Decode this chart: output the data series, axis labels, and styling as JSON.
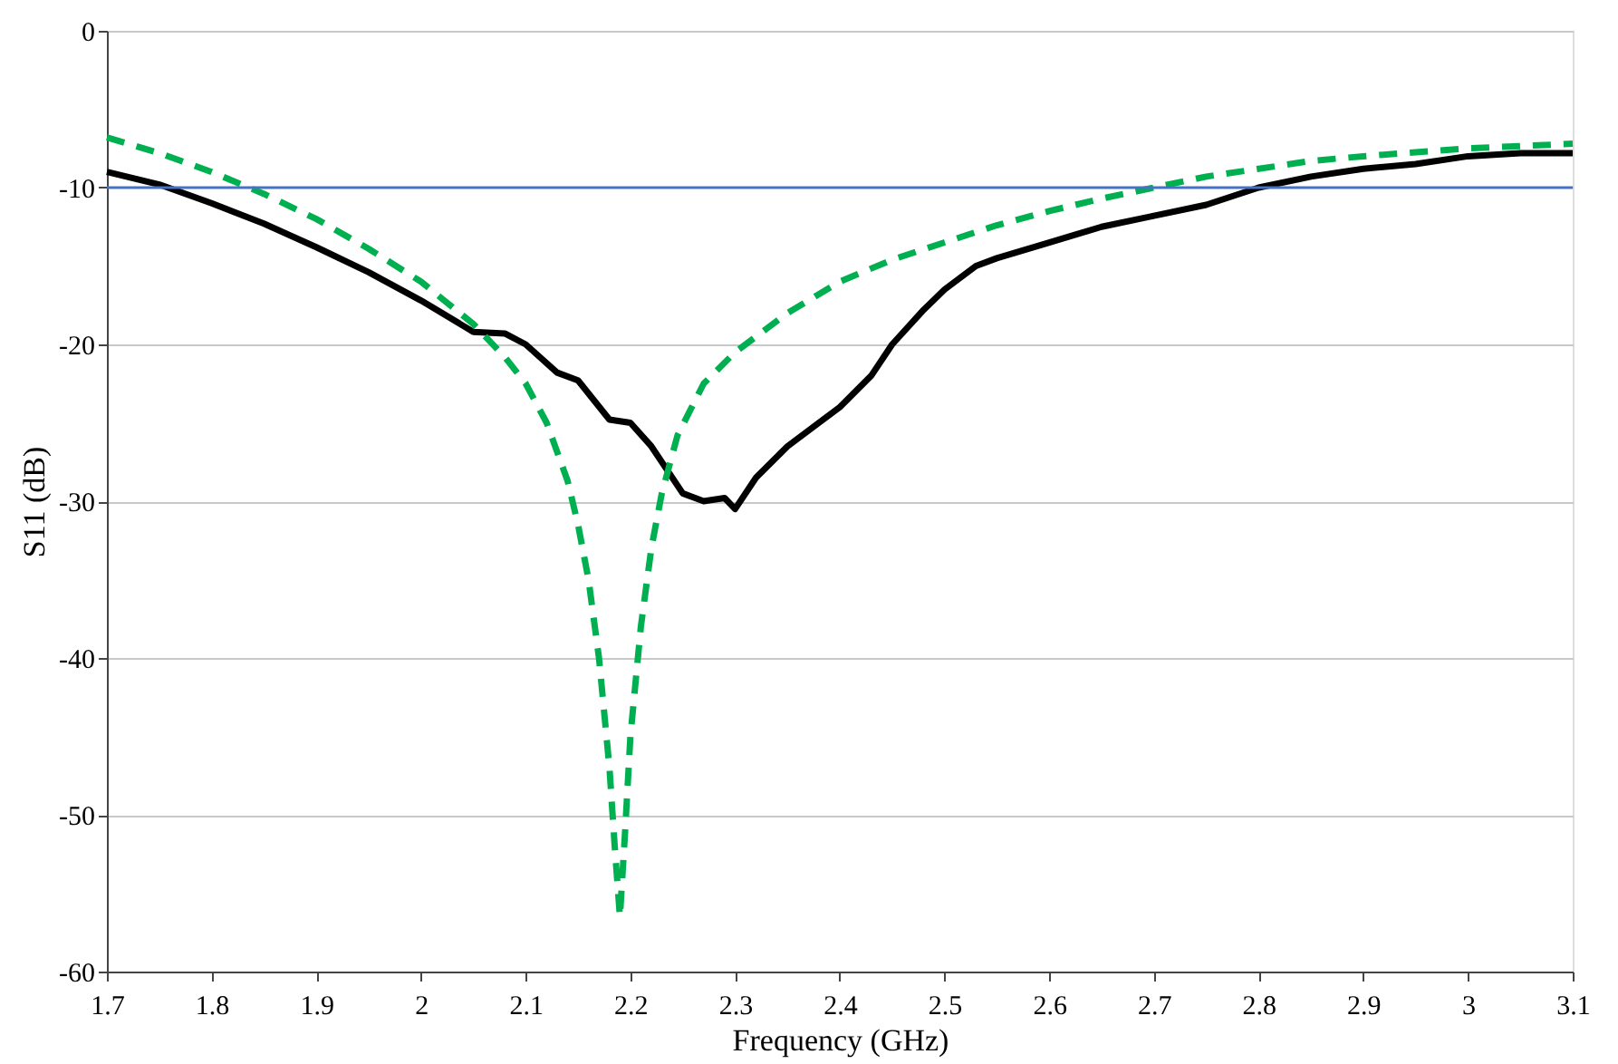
{
  "chart_data": {
    "type": "line",
    "xlabel": "Frequency (GHz)",
    "ylabel": "S11 (dB)",
    "xlim": [
      1.7,
      3.1
    ],
    "xticks": [
      1.7,
      1.8,
      1.9,
      2,
      2.1,
      2.2,
      2.3,
      2.4,
      2.5,
      2.6,
      2.7,
      2.8,
      2.9,
      3,
      3.1
    ],
    "ylim": [
      -60,
      0
    ],
    "yticks": [
      -60,
      -50,
      -40,
      -30,
      -20,
      -10,
      0
    ],
    "grid": "y",
    "marker": "none",
    "series": [
      {
        "color": "#000000",
        "line_style": "solid",
        "x": [
          1.7,
          1.75,
          1.8,
          1.85,
          1.9,
          1.95,
          2.0,
          2.05,
          2.08,
          2.1,
          2.13,
          2.15,
          2.18,
          2.2,
          2.22,
          2.25,
          2.27,
          2.29,
          2.3,
          2.32,
          2.35,
          2.38,
          2.4,
          2.43,
          2.45,
          2.48,
          2.5,
          2.53,
          2.55,
          2.6,
          2.65,
          2.7,
          2.75,
          2.8,
          2.85,
          2.9,
          2.95,
          3.0,
          3.05,
          3.1
        ],
        "values": [
          -9,
          -9.8,
          -11,
          -12.3,
          -13.8,
          -15.4,
          -17.2,
          -19.2,
          -19.3,
          -20,
          -21.8,
          -22.3,
          -24.8,
          -25,
          -26.5,
          -29.5,
          -30,
          -29.8,
          -30.5,
          -28.5,
          -26.5,
          -25,
          -24,
          -22,
          -20,
          -17.8,
          -16.5,
          -15,
          -14.5,
          -13.5,
          -12.5,
          -11.8,
          -11.1,
          -10,
          -9.3,
          -8.8,
          -8.5,
          -8,
          -7.8,
          -7.8
        ]
      },
      {
        "color": "#00b050",
        "line_style": "dashed",
        "x": [
          1.7,
          1.75,
          1.8,
          1.85,
          1.9,
          1.95,
          2.0,
          2.05,
          2.08,
          2.1,
          2.12,
          2.14,
          2.15,
          2.16,
          2.17,
          2.18,
          2.185,
          2.19,
          2.195,
          2.2,
          2.21,
          2.22,
          2.23,
          2.245,
          2.27,
          2.3,
          2.35,
          2.4,
          2.45,
          2.5,
          2.55,
          2.6,
          2.65,
          2.7,
          2.75,
          2.8,
          2.85,
          2.9,
          3.0,
          3.1
        ],
        "values": [
          -6.8,
          -7.8,
          -9,
          -10.4,
          -12,
          -13.9,
          -16,
          -18.7,
          -20.8,
          -22.5,
          -25,
          -28.7,
          -31.5,
          -35,
          -40,
          -47,
          -52,
          -56.5,
          -51,
          -45,
          -38,
          -33,
          -29.5,
          -25.8,
          -22.5,
          -20.5,
          -18,
          -16,
          -14.6,
          -13.5,
          -12.4,
          -11.5,
          -10.7,
          -10,
          -9.3,
          -8.8,
          -8.3,
          -8,
          -7.5,
          -7.2
        ]
      }
    ],
    "ref_lines": [
      {
        "axis": "y",
        "value": -10,
        "color": "#4472c4"
      }
    ]
  }
}
